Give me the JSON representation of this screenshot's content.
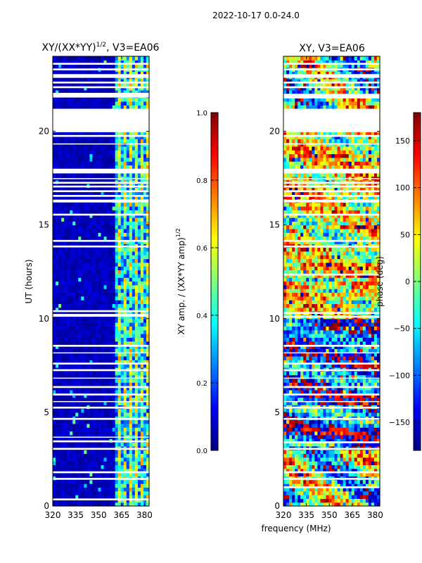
{
  "figure": {
    "suptitle": "2022-10-17 0.0-24.0",
    "shared_xlabel": "frequency (MHz)",
    "colormap": "jet"
  },
  "chart_data": [
    {
      "type": "heatmap",
      "id": "left",
      "title": "XY/(XX*YY)",
      "title_exponent": "1/2",
      "title_suffix": ", V3=EA06",
      "xlabel": "",
      "ylabel": "UT (hours)",
      "xlim": [
        320,
        383
      ],
      "ylim": [
        0,
        24
      ],
      "xticks": [
        320,
        335,
        350,
        365,
        380
      ],
      "yticks": [
        0,
        5,
        10,
        15,
        20
      ],
      "pattern": "amplitude",
      "notes": "Mostly low values (~0.0-0.1) below ~361 MHz; higher values (~0.4-0.8) between ~361-383 MHz with vertical channel structure. White rows are flagged (no data).",
      "flag_bands": [
        [
          0.3,
          0.4
        ],
        [
          1.4,
          1.5
        ],
        [
          1.75,
          1.85
        ],
        [
          3.0,
          3.1
        ],
        [
          3.4,
          3.5
        ],
        [
          3.65,
          3.7
        ],
        [
          4.6,
          4.7
        ],
        [
          5.2,
          5.3
        ],
        [
          5.55,
          5.6
        ],
        [
          5.9,
          6.0
        ],
        [
          6.3,
          6.4
        ],
        [
          6.8,
          6.85
        ],
        [
          7.2,
          7.3
        ],
        [
          7.55,
          7.65
        ],
        [
          8.15,
          8.2
        ],
        [
          8.5,
          8.6
        ],
        [
          10.1,
          10.25
        ],
        [
          10.35,
          10.45
        ],
        [
          13.8,
          13.9
        ],
        [
          14.1,
          14.2
        ],
        [
          15.5,
          15.6
        ],
        [
          16.2,
          16.35
        ],
        [
          16.5,
          16.6
        ],
        [
          16.75,
          16.85
        ],
        [
          17.0,
          17.1
        ],
        [
          17.2,
          17.3
        ],
        [
          17.45,
          17.5
        ],
        [
          17.75,
          18.0
        ],
        [
          19.3,
          19.35
        ],
        [
          19.7,
          19.8
        ],
        [
          19.95,
          21.2
        ],
        [
          21.8,
          22.05
        ],
        [
          22.3,
          22.4
        ],
        [
          22.55,
          22.65
        ],
        [
          22.85,
          23.05
        ],
        [
          23.25,
          23.35
        ],
        [
          23.55,
          23.65
        ]
      ]
    },
    {
      "type": "heatmap",
      "id": "right",
      "title": "XY, V3=EA06",
      "xlabel": "frequency (MHz)",
      "ylabel": "",
      "xlim": [
        320,
        383
      ],
      "ylim": [
        0,
        24
      ],
      "xticks": [
        320,
        335,
        350,
        365,
        380
      ],
      "yticks": [
        0,
        5,
        10,
        15,
        20
      ],
      "pattern": "phase",
      "notes": "Phase values spanning -180 to 180 deg with banded, noisy structure; yellow/orange dominated between ~10-20 h, blue dominated ~3-10 h. White rows are flagged (no data).",
      "flag_bands": [
        [
          0.95,
          1.05
        ],
        [
          1.4,
          1.5
        ],
        [
          1.75,
          1.85
        ],
        [
          3.0,
          3.1
        ],
        [
          3.35,
          3.45
        ],
        [
          4.6,
          4.7
        ],
        [
          5.2,
          5.3
        ],
        [
          5.55,
          5.6
        ],
        [
          5.9,
          6.0
        ],
        [
          6.3,
          6.4
        ],
        [
          6.8,
          6.85
        ],
        [
          7.2,
          7.3
        ],
        [
          7.55,
          7.65
        ],
        [
          8.15,
          8.2
        ],
        [
          8.5,
          8.6
        ],
        [
          10.05,
          10.15
        ],
        [
          10.25,
          10.35
        ],
        [
          12.3,
          12.4
        ],
        [
          13.8,
          13.9
        ],
        [
          14.1,
          14.2
        ],
        [
          15.5,
          15.6
        ],
        [
          16.2,
          16.35
        ],
        [
          16.5,
          16.6
        ],
        [
          16.75,
          16.85
        ],
        [
          17.0,
          17.1
        ],
        [
          17.2,
          17.3
        ],
        [
          17.45,
          17.5
        ],
        [
          17.75,
          18.0
        ],
        [
          19.3,
          19.35
        ],
        [
          19.7,
          19.8
        ],
        [
          19.95,
          21.2
        ],
        [
          21.75,
          22.0
        ],
        [
          22.3,
          22.4
        ],
        [
          22.55,
          22.65
        ],
        [
          22.85,
          23.05
        ],
        [
          23.25,
          23.35
        ],
        [
          23.55,
          23.65
        ]
      ]
    }
  ],
  "colorbars": [
    {
      "id": "amp",
      "label": "XY amp. / (XX*YY amp)",
      "label_exponent": "1/2",
      "range": [
        0.0,
        1.0
      ],
      "ticks": [
        0.0,
        0.2,
        0.4,
        0.6,
        0.8,
        1.0
      ],
      "tick_labels": [
        "0.0",
        "0.2",
        "0.4",
        "0.6",
        "0.8",
        "1.0"
      ]
    },
    {
      "id": "phase",
      "label": "phase (deg)",
      "range": [
        -180,
        180
      ],
      "ticks": [
        -150,
        -100,
        -50,
        0,
        50,
        100,
        150
      ],
      "tick_labels": [
        "−150",
        "−100",
        "−50",
        "0",
        "50",
        "100",
        "150"
      ]
    }
  ]
}
